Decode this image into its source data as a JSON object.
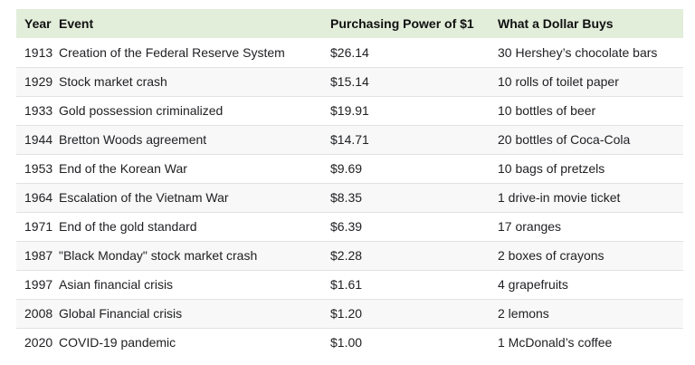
{
  "table": {
    "columns": [
      {
        "key": "year",
        "label": "Year"
      },
      {
        "key": "event",
        "label": "Event"
      },
      {
        "key": "power",
        "label": "Purchasing Power of $1"
      },
      {
        "key": "buys",
        "label": "What a Dollar Buys"
      }
    ],
    "rows": [
      {
        "year": "1913",
        "event": "Creation of the Federal Reserve System",
        "power": "$26.14",
        "buys": "30 Hershey’s chocolate bars"
      },
      {
        "year": "1929",
        "event": "Stock market crash",
        "power": "$15.14",
        "buys": "10 rolls of toilet paper"
      },
      {
        "year": "1933",
        "event": "Gold possession criminalized",
        "power": "$19.91",
        "buys": "10 bottles of beer"
      },
      {
        "year": "1944",
        "event": "Bretton Woods agreement",
        "power": "$14.71",
        "buys": "20 bottles of Coca-Cola"
      },
      {
        "year": "1953",
        "event": "End of the Korean War",
        "power": "$9.69",
        "buys": "10 bags of pretzels"
      },
      {
        "year": "1964",
        "event": "Escalation of the Vietnam War",
        "power": "$8.35",
        "buys": "1 drive-in movie ticket"
      },
      {
        "year": "1971",
        "event": "End of the gold standard",
        "power": "$6.39",
        "buys": "17 oranges"
      },
      {
        "year": "1987",
        "event": "\"Black Monday\" stock market crash",
        "power": "$2.28",
        "buys": "2 boxes of crayons"
      },
      {
        "year": "1997",
        "event": "Asian financial crisis",
        "power": "$1.61",
        "buys": "4 grapefruits"
      },
      {
        "year": "2008",
        "event": "Global Financial crisis",
        "power": "$1.20",
        "buys": "2 lemons"
      },
      {
        "year": "2020",
        "event": "COVID-19 pandemic",
        "power": "$1.00",
        "buys": "1 McDonald’s coffee"
      }
    ]
  },
  "colors": {
    "header_bg": "#e2edda",
    "header_text": "#111111",
    "text": "#202124",
    "row_alt_bg": "#f8f8f8",
    "divider": "#e2e2e2"
  }
}
